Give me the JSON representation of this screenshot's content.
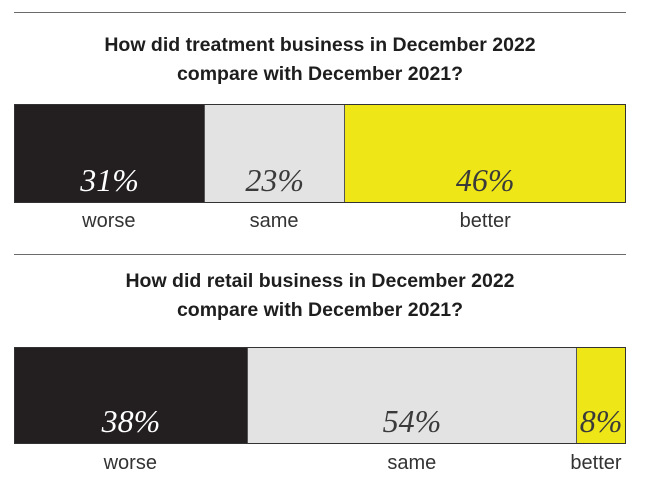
{
  "chart_data": [
    {
      "type": "bar",
      "title": "How did treatment business in December 2022 compare with December 2021?",
      "title_lines": [
        "How did treatment business in December 2022",
        "compare with December 2021?"
      ],
      "categories": [
        "worse",
        "same",
        "better"
      ],
      "values": [
        31,
        23,
        46
      ],
      "value_labels": [
        "31%",
        "23%",
        "46%"
      ],
      "colors": [
        "#231f20",
        "#e3e3e3",
        "#eee617"
      ],
      "stacked": true,
      "orientation": "horizontal"
    },
    {
      "type": "bar",
      "title": "How did retail business in December 2022 compare with December 2021?",
      "title_lines": [
        "How did retail business in December 2022",
        "compare with December 2021?"
      ],
      "categories": [
        "worse",
        "same",
        "better"
      ],
      "values": [
        38,
        54,
        8
      ],
      "value_labels": [
        "38%",
        "54%",
        "8%"
      ],
      "colors": [
        "#231f20",
        "#e3e3e3",
        "#eee617"
      ],
      "stacked": true,
      "orientation": "horizontal"
    }
  ]
}
